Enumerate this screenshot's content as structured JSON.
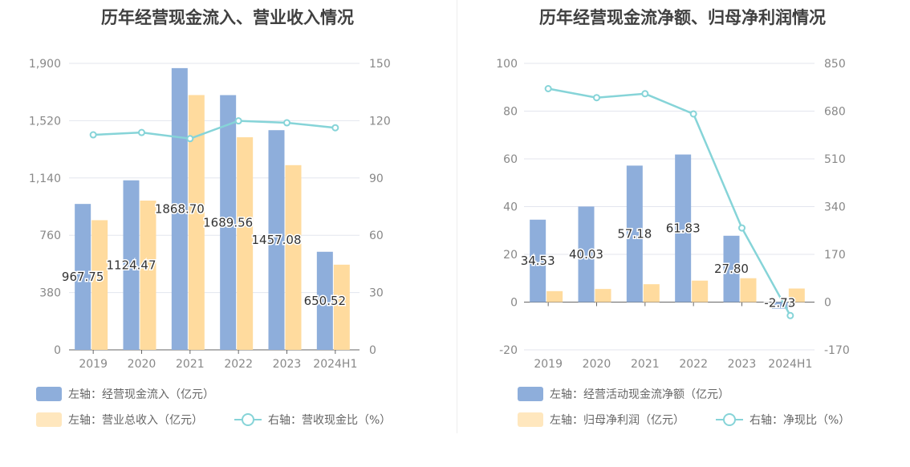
{
  "charts": [
    {
      "title": "历年经营现金流入、营业收入情况",
      "legend": {
        "bar1": "左轴：经营现金流入（亿元）",
        "bar2": "左轴：营业总收入（亿元）",
        "line": "右轴：营收现金比（%）"
      }
    },
    {
      "title": "历年经营现金流净额、归母净利润情况",
      "legend": {
        "bar1": "左轴：经营活动现金流净额（亿元）",
        "bar2": "左轴：归母净利润（亿元）",
        "line": "右轴：净现比（%）"
      }
    }
  ],
  "colors": {
    "bar1": "#8eaedb",
    "bar2": "#ffdb9e",
    "line": "#86d4d8",
    "grid": "#e3e6ee",
    "axis": "#888888",
    "label": "#333333"
  },
  "chart_data": [
    {
      "type": "bar",
      "title": "历年经营现金流入、营业收入情况",
      "categories": [
        "2019",
        "2020",
        "2021",
        "2022",
        "2023",
        "2024H1"
      ],
      "left_axis": {
        "ticks": [
          "0",
          "380",
          "760",
          "1,140",
          "1,520",
          "1,900"
        ],
        "range": [
          0,
          1900
        ]
      },
      "right_axis": {
        "ticks": [
          "0",
          "30",
          "60",
          "90",
          "120",
          "150"
        ],
        "range": [
          0,
          150
        ]
      },
      "series": [
        {
          "name": "左轴：经营现金流入（亿元）",
          "type": "bar",
          "axis": "left",
          "values": [
            967.75,
            1124.47,
            1868.7,
            1689.56,
            1457.08,
            650.52
          ],
          "labels": [
            "967.75",
            "1124.47",
            "1868.70",
            "1689.56",
            "1457.08",
            "650.52"
          ]
        },
        {
          "name": "左轴：营业总收入（亿元）",
          "type": "bar",
          "axis": "left",
          "values": [
            860,
            990,
            1690,
            1410,
            1225,
            565
          ]
        },
        {
          "name": "右轴：营收现金比（%）",
          "type": "line",
          "axis": "right",
          "values": [
            112.6,
            113.8,
            110.6,
            119.9,
            118.9,
            116.3
          ]
        }
      ],
      "legend_position": "bottom-left",
      "grid": true
    },
    {
      "type": "bar",
      "title": "历年经营现金流净额、归母净利润情况",
      "categories": [
        "2019",
        "2020",
        "2021",
        "2022",
        "2023",
        "2024H1"
      ],
      "left_axis": {
        "ticks": [
          "-20",
          "0",
          "20",
          "40",
          "60",
          "80",
          "100"
        ],
        "range": [
          -20,
          100
        ]
      },
      "right_axis": {
        "ticks": [
          "-170",
          "0",
          "170",
          "340",
          "510",
          "680",
          "850"
        ],
        "range": [
          -170,
          850
        ]
      },
      "series": [
        {
          "name": "左轴：经营活动现金流净额（亿元）",
          "type": "bar",
          "axis": "left",
          "values": [
            34.53,
            40.03,
            57.18,
            61.83,
            27.8,
            -2.73
          ],
          "labels": [
            "34.53",
            "40.03",
            "57.18",
            "61.83",
            "27.80",
            "-2.73"
          ]
        },
        {
          "name": "左轴：归母净利润（亿元）",
          "type": "bar",
          "axis": "left",
          "values": [
            4.6,
            5.5,
            7.5,
            9.0,
            10.0,
            5.7
          ]
        },
        {
          "name": "右轴：净现比（%）",
          "type": "line",
          "axis": "right",
          "values": [
            760,
            728,
            742,
            670,
            264,
            -48
          ]
        }
      ],
      "legend_position": "bottom-left",
      "grid": true
    }
  ]
}
